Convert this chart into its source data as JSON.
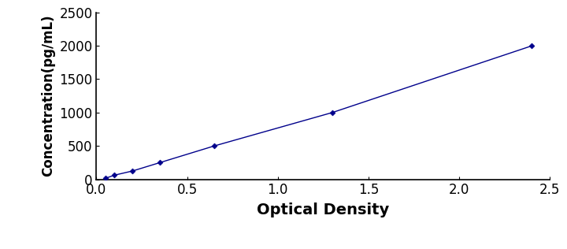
{
  "x_data": [
    0.05,
    0.1,
    0.2,
    0.35,
    0.65,
    1.3,
    2.4
  ],
  "y_data": [
    15,
    62,
    125,
    250,
    500,
    1000,
    2000
  ],
  "line_color": "#00008B",
  "marker_style": "D",
  "marker_size": 3.5,
  "marker_color": "#00008B",
  "xlabel": "Optical Density",
  "ylabel": "Concentration(pg/mL)",
  "xlim": [
    0,
    2.5
  ],
  "ylim": [
    0,
    2500
  ],
  "xticks": [
    0,
    0.5,
    1,
    1.5,
    2,
    2.5
  ],
  "yticks": [
    0,
    500,
    1000,
    1500,
    2000,
    2500
  ],
  "xlabel_fontsize": 14,
  "ylabel_fontsize": 12,
  "tick_fontsize": 12,
  "line_width": 1.0,
  "background_color": "#ffffff"
}
